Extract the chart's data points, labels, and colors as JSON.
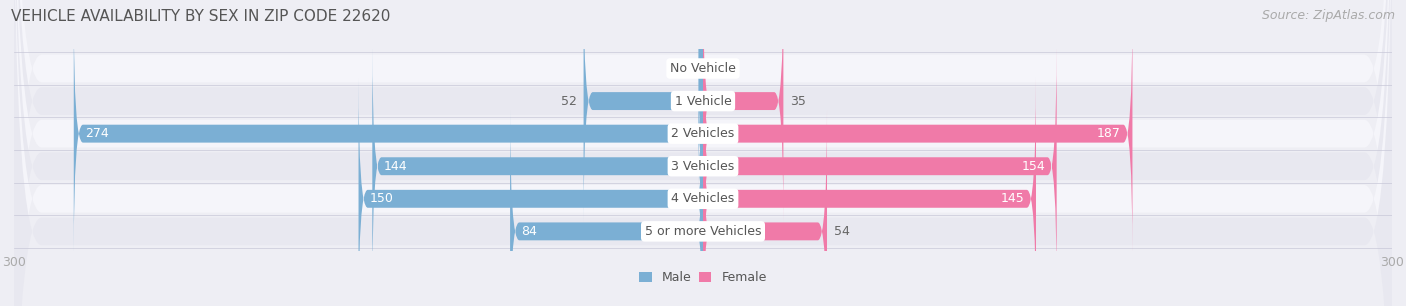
{
  "title": "VEHICLE AVAILABILITY BY SEX IN ZIP CODE 22620",
  "source": "Source: ZipAtlas.com",
  "categories": [
    "No Vehicle",
    "1 Vehicle",
    "2 Vehicles",
    "3 Vehicles",
    "4 Vehicles",
    "5 or more Vehicles"
  ],
  "male_values": [
    2,
    52,
    274,
    144,
    150,
    84
  ],
  "female_values": [
    0,
    35,
    187,
    154,
    145,
    54
  ],
  "male_color": "#7bafd4",
  "female_color": "#f07aa8",
  "male_label": "Male",
  "female_label": "Female",
  "xlim": [
    -300,
    300
  ],
  "bar_height": 0.55,
  "background_color": "#eeeef4",
  "row_bg_colors": [
    "#f5f5fa",
    "#e8e8f0"
  ],
  "label_color_inside": "#ffffff",
  "label_color_outside": "#666666",
  "center_label_bg": "#ffffff",
  "center_label_color": "#555555",
  "title_color": "#555555",
  "source_color": "#aaaaaa",
  "title_fontsize": 11,
  "source_fontsize": 9,
  "value_fontsize": 9,
  "category_fontsize": 9,
  "axis_fontsize": 9,
  "legend_fontsize": 9,
  "inside_threshold": 60
}
